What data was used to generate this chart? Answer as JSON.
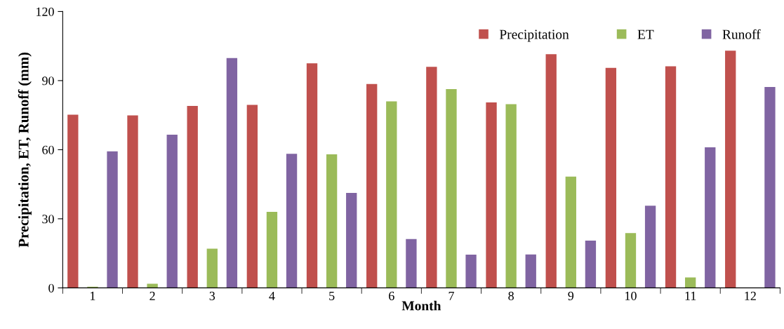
{
  "chart_data": {
    "type": "bar",
    "xlabel": "Month",
    "ylabel": "Precipitation, ET, Runoff (mm)",
    "categories": [
      "1",
      "2",
      "3",
      "4",
      "5",
      "6",
      "7",
      "8",
      "9",
      "10",
      "11",
      "12"
    ],
    "series": [
      {
        "name": "Precipitation",
        "color": "#c0504d",
        "values": [
          75.2,
          74.9,
          79,
          79.5,
          97.5,
          88.5,
          96,
          80.5,
          101.5,
          95.5,
          96.2,
          103
        ]
      },
      {
        "name": "ET",
        "color": "#9bbb59",
        "values": [
          0.5,
          1.8,
          17,
          33,
          58,
          81,
          86.3,
          79.8,
          48.3,
          23.8,
          4.5,
          0
        ]
      },
      {
        "name": "Runoff",
        "color": "#8064a2",
        "values": [
          59.3,
          66.5,
          99.8,
          58.2,
          41.2,
          21.2,
          14.4,
          14.5,
          20.5,
          35.7,
          61,
          87.2
        ]
      }
    ],
    "ylim": [
      0,
      120
    ],
    "yticks": [
      0,
      30,
      60,
      90,
      120
    ],
    "grid": false,
    "legend": "top right"
  }
}
